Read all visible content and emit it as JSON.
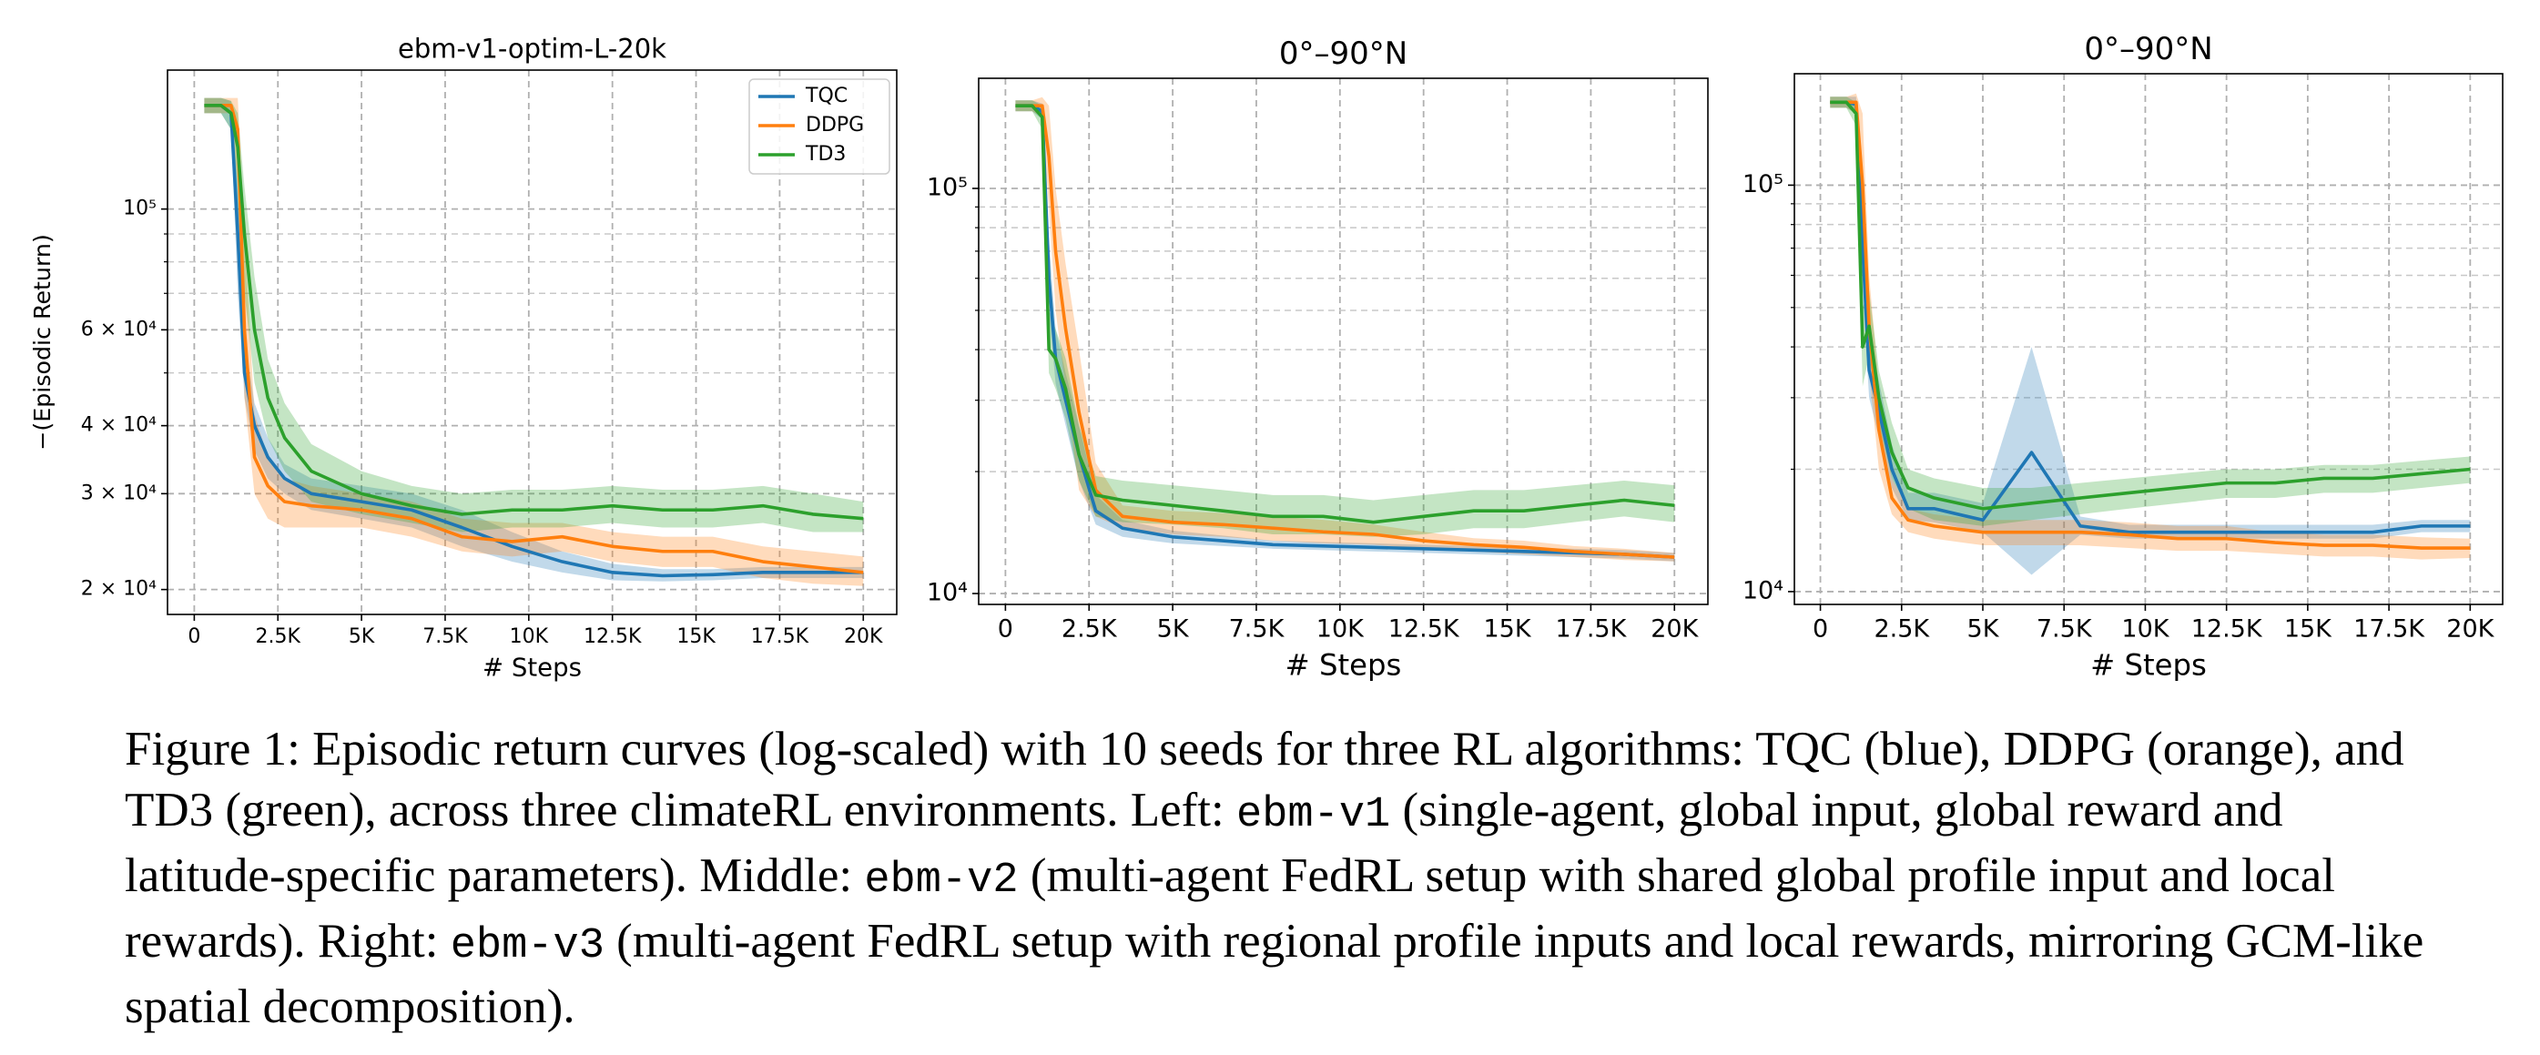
{
  "chart_data": [
    {
      "type": "line",
      "title": "ebm-v1-optim-L-20k",
      "xlabel": "# Steps",
      "ylabel": "−(Episodic Return)",
      "yscale": "log",
      "grid": true,
      "legend": "upper right",
      "xlim": [
        -800,
        21000
      ],
      "ylim": [
        18000,
        180000
      ],
      "xticks": [
        0,
        {
          "value": 2500,
          "label": "2.5K"
        },
        {
          "value": 5000,
          "label": "5K"
        },
        {
          "value": 7500,
          "label": "7.5K"
        },
        {
          "value": 10000,
          "label": "10K"
        },
        {
          "value": 12500,
          "label": "12.5K"
        },
        {
          "value": 15000,
          "label": "15K"
        },
        {
          "value": 17500,
          "label": "17.5K"
        },
        {
          "value": 20000,
          "label": "20K"
        }
      ],
      "yticks": [
        {
          "value": 20000,
          "label": "2 × 10⁴"
        },
        {
          "value": 30000,
          "label": "3 × 10⁴"
        },
        {
          "value": 40000,
          "label": "4 × 10⁴"
        },
        {
          "value": 60000,
          "label": "6 × 10⁴"
        },
        {
          "value": 100000,
          "label": "10⁵"
        }
      ],
      "yminorticks": [
        50000,
        70000,
        80000,
        90000
      ],
      "x": [
        300,
        800,
        1100,
        1300,
        1500,
        1800,
        2200,
        2700,
        3500,
        5000,
        6500,
        8000,
        9500,
        11000,
        12500,
        14000,
        15500,
        17000,
        18500,
        20000
      ],
      "series": [
        {
          "name": "TQC",
          "color": "#1f77b4",
          "values": [
            155000,
            155000,
            150000,
            90000,
            50000,
            40000,
            35000,
            32000,
            30000,
            29000,
            28000,
            26000,
            24000,
            22500,
            21500,
            21200,
            21300,
            21500,
            21500,
            21500
          ],
          "lower": [
            150000,
            150000,
            140000,
            70000,
            45000,
            36000,
            32000,
            30000,
            28000,
            27000,
            26000,
            24000,
            22500,
            21500,
            20800,
            20700,
            20800,
            21000,
            21000,
            21000
          ],
          "upper": [
            160000,
            160000,
            158000,
            110000,
            58000,
            44000,
            38000,
            34000,
            32000,
            31000,
            30000,
            28000,
            25500,
            23500,
            22300,
            21800,
            21800,
            22000,
            22000,
            22000
          ]
        },
        {
          "name": "DDPG",
          "color": "#ff7f0e",
          "values": [
            155000,
            155000,
            155000,
            140000,
            60000,
            35000,
            31000,
            29000,
            28500,
            28000,
            27000,
            25000,
            24500,
            25000,
            24000,
            23500,
            23500,
            22500,
            22000,
            21500
          ],
          "lower": [
            150000,
            150000,
            150000,
            110000,
            45000,
            30000,
            27000,
            26000,
            26000,
            26000,
            25000,
            23500,
            23000,
            23500,
            22500,
            22000,
            22000,
            21000,
            20500,
            20300
          ],
          "upper": [
            160000,
            160000,
            160000,
            160000,
            90000,
            42000,
            35000,
            32000,
            31000,
            30000,
            29000,
            27000,
            26500,
            26500,
            25500,
            25000,
            25000,
            24000,
            23500,
            23000
          ]
        },
        {
          "name": "TD3",
          "color": "#2ca02c",
          "values": [
            155000,
            155000,
            150000,
            130000,
            90000,
            60000,
            45000,
            38000,
            33000,
            30000,
            28500,
            27500,
            28000,
            28000,
            28500,
            28000,
            28000,
            28500,
            27500,
            27000
          ],
          "lower": [
            150000,
            150000,
            140000,
            100000,
            70000,
            48000,
            38000,
            33000,
            29000,
            27500,
            26500,
            25500,
            26000,
            26000,
            26500,
            26000,
            26000,
            26500,
            25500,
            25500
          ],
          "upper": [
            160000,
            160000,
            158000,
            150000,
            110000,
            75000,
            53000,
            44000,
            37000,
            33000,
            31000,
            30000,
            30500,
            30500,
            31000,
            30500,
            30500,
            31000,
            30000,
            29000
          ]
        }
      ]
    },
    {
      "type": "line",
      "title": "0°–90°N",
      "xlabel": "# Steps",
      "yscale": "log",
      "grid": true,
      "xlim": [
        -800,
        21000
      ],
      "ylim": [
        9400,
        187000
      ],
      "xticks": [
        0,
        {
          "value": 2500,
          "label": "2.5K"
        },
        {
          "value": 5000,
          "label": "5K"
        },
        {
          "value": 7500,
          "label": "7.5K"
        },
        {
          "value": 10000,
          "label": "10K"
        },
        {
          "value": 12500,
          "label": "12.5K"
        },
        {
          "value": 15000,
          "label": "15K"
        },
        {
          "value": 17500,
          "label": "17.5K"
        },
        {
          "value": 20000,
          "label": "20K"
        }
      ],
      "yticks": [
        {
          "value": 10000,
          "label": "10⁴"
        },
        {
          "value": 100000,
          "label": "10⁵"
        }
      ],
      "yminorticks": [
        20000,
        30000,
        40000,
        50000,
        60000,
        70000,
        80000,
        90000
      ],
      "x": [
        300,
        800,
        1100,
        1300,
        1500,
        1800,
        2200,
        2700,
        3500,
        5000,
        6500,
        8000,
        9500,
        11000,
        12500,
        14000,
        15500,
        17000,
        18500,
        20000
      ],
      "series": [
        {
          "name": "TQC",
          "color": "#1f77b4",
          "values": [
            160000,
            160000,
            155000,
            60000,
            38000,
            30000,
            22000,
            16000,
            14500,
            13800,
            13500,
            13200,
            13100,
            13000,
            12900,
            12800,
            12700,
            12600,
            12500,
            12300
          ],
          "lower": [
            155000,
            155000,
            148000,
            50000,
            33000,
            26000,
            19000,
            14800,
            13800,
            13300,
            13100,
            12900,
            12800,
            12700,
            12600,
            12500,
            12400,
            12300,
            12200,
            12000
          ],
          "upper": [
            165000,
            165000,
            162000,
            75000,
            45000,
            35000,
            26000,
            17500,
            15200,
            14300,
            13900,
            13500,
            13400,
            13300,
            13200,
            13100,
            13000,
            12900,
            12800,
            12600
          ]
        },
        {
          "name": "DDPG",
          "color": "#ff7f0e",
          "values": [
            160000,
            160000,
            160000,
            120000,
            70000,
            45000,
            28000,
            18000,
            15500,
            15000,
            14800,
            14500,
            14200,
            14000,
            13500,
            13200,
            13000,
            12700,
            12500,
            12300
          ],
          "lower": [
            155000,
            155000,
            150000,
            90000,
            50000,
            32000,
            18000,
            15500,
            14500,
            14000,
            13800,
            13500,
            13300,
            13200,
            12900,
            12700,
            12500,
            12300,
            12100,
            12000
          ],
          "upper": [
            165000,
            165000,
            168000,
            160000,
            100000,
            65000,
            40000,
            21000,
            16500,
            16000,
            15800,
            15500,
            15200,
            14800,
            14200,
            13700,
            13500,
            13100,
            12900,
            12600
          ]
        },
        {
          "name": "TD3",
          "color": "#2ca02c",
          "values": [
            160000,
            160000,
            150000,
            40000,
            38000,
            32000,
            22000,
            17500,
            17000,
            16500,
            16000,
            15500,
            15500,
            15000,
            15500,
            16000,
            16000,
            16500,
            17000,
            16500
          ],
          "lower": [
            155000,
            155000,
            140000,
            35000,
            32000,
            27000,
            19000,
            15500,
            15000,
            14800,
            14500,
            14000,
            14000,
            13800,
            14000,
            14500,
            14500,
            15000,
            15500,
            15000
          ],
          "upper": [
            165000,
            165000,
            160000,
            50000,
            45000,
            38000,
            26000,
            19500,
            19000,
            18500,
            18000,
            17500,
            17500,
            17000,
            17500,
            18000,
            18000,
            18500,
            19000,
            18500
          ]
        }
      ]
    },
    {
      "type": "line",
      "title": "0°–90°N",
      "xlabel": "# Steps",
      "yscale": "log",
      "grid": true,
      "xlim": [
        -800,
        21000
      ],
      "ylim": [
        9300,
        188000
      ],
      "xticks": [
        0,
        {
          "value": 2500,
          "label": "2.5K"
        },
        {
          "value": 5000,
          "label": "5K"
        },
        {
          "value": 7500,
          "label": "7.5K"
        },
        {
          "value": 10000,
          "label": "10K"
        },
        {
          "value": 12500,
          "label": "12.5K"
        },
        {
          "value": 15000,
          "label": "15K"
        },
        {
          "value": 17500,
          "label": "17.5K"
        },
        {
          "value": 20000,
          "label": "20K"
        }
      ],
      "yticks": [
        {
          "value": 10000,
          "label": "10⁴"
        },
        {
          "value": 100000,
          "label": "10⁵"
        }
      ],
      "yminorticks": [
        20000,
        30000,
        40000,
        50000,
        60000,
        70000,
        80000,
        90000
      ],
      "x": [
        300,
        800,
        1100,
        1300,
        1500,
        1800,
        2200,
        2700,
        3500,
        5000,
        6500,
        8000,
        9500,
        11000,
        12500,
        14000,
        15500,
        17000,
        18500,
        20000
      ],
      "series": [
        {
          "name": "TQC",
          "color": "#1f77b4",
          "values": [
            160000,
            160000,
            158000,
            70000,
            35000,
            28000,
            20000,
            16000,
            16000,
            15000,
            22000,
            14500,
            14000,
            14000,
            14000,
            14000,
            14000,
            14000,
            14500,
            14500
          ],
          "lower": [
            155000,
            155000,
            150000,
            55000,
            30000,
            24000,
            18000,
            15000,
            14800,
            14000,
            11000,
            13800,
            13500,
            13500,
            13500,
            13500,
            13500,
            13500,
            14000,
            14000
          ],
          "upper": [
            165000,
            165000,
            165000,
            90000,
            42000,
            33000,
            23000,
            17500,
            17500,
            16500,
            40000,
            15300,
            14600,
            14600,
            14600,
            14600,
            14600,
            14600,
            15000,
            15000
          ]
        },
        {
          "name": "DDPG",
          "color": "#ff7f0e",
          "values": [
            160000,
            160000,
            160000,
            100000,
            45000,
            25000,
            17000,
            15000,
            14500,
            14000,
            14000,
            14000,
            13800,
            13500,
            13500,
            13200,
            13000,
            13000,
            12800,
            12800
          ],
          "lower": [
            155000,
            155000,
            150000,
            70000,
            35000,
            20000,
            15500,
            14000,
            13500,
            13000,
            13000,
            13000,
            12800,
            12600,
            12600,
            12400,
            12200,
            12200,
            12000,
            12100
          ],
          "upper": [
            165000,
            165000,
            168000,
            150000,
            60000,
            32000,
            19000,
            16000,
            15500,
            15000,
            15000,
            15000,
            14800,
            14500,
            14500,
            14000,
            13800,
            13800,
            13600,
            13500
          ]
        },
        {
          "name": "TD3",
          "color": "#2ca02c",
          "values": [
            160000,
            160000,
            150000,
            40000,
            45000,
            30000,
            22000,
            18000,
            17000,
            16000,
            16500,
            17000,
            17500,
            18000,
            18500,
            18500,
            19000,
            19000,
            19500,
            20000
          ],
          "lower": [
            155000,
            155000,
            140000,
            32000,
            38000,
            26000,
            19000,
            16000,
            15000,
            14500,
            15000,
            15500,
            16000,
            16500,
            17000,
            17000,
            17500,
            17500,
            18000,
            18500
          ],
          "upper": [
            165000,
            165000,
            160000,
            50000,
            55000,
            35000,
            26000,
            20000,
            19000,
            18000,
            18000,
            18500,
            19000,
            19500,
            20000,
            20000,
            20500,
            20500,
            21000,
            21500
          ]
        }
      ]
    }
  ],
  "caption": [
    "Figure 1: Episodic return curves (log-scaled) with 10 seeds for three RL algorithms: TQC (blue), DDPG (orange), and TD3 (green), across three climateRL environments. Left: ",
    "ebm-v1",
    " (single-agent, global input, global reward and latitude-specific parameters). Middle: ",
    "ebm-v2",
    " (multi-agent FedRL setup with shared global profile input and local rewards). Right: ",
    "ebm-v3",
    " (multi-agent FedRL setup with regional profile inputs and local rewards, mirroring GCM-like spatial decomposition)."
  ]
}
